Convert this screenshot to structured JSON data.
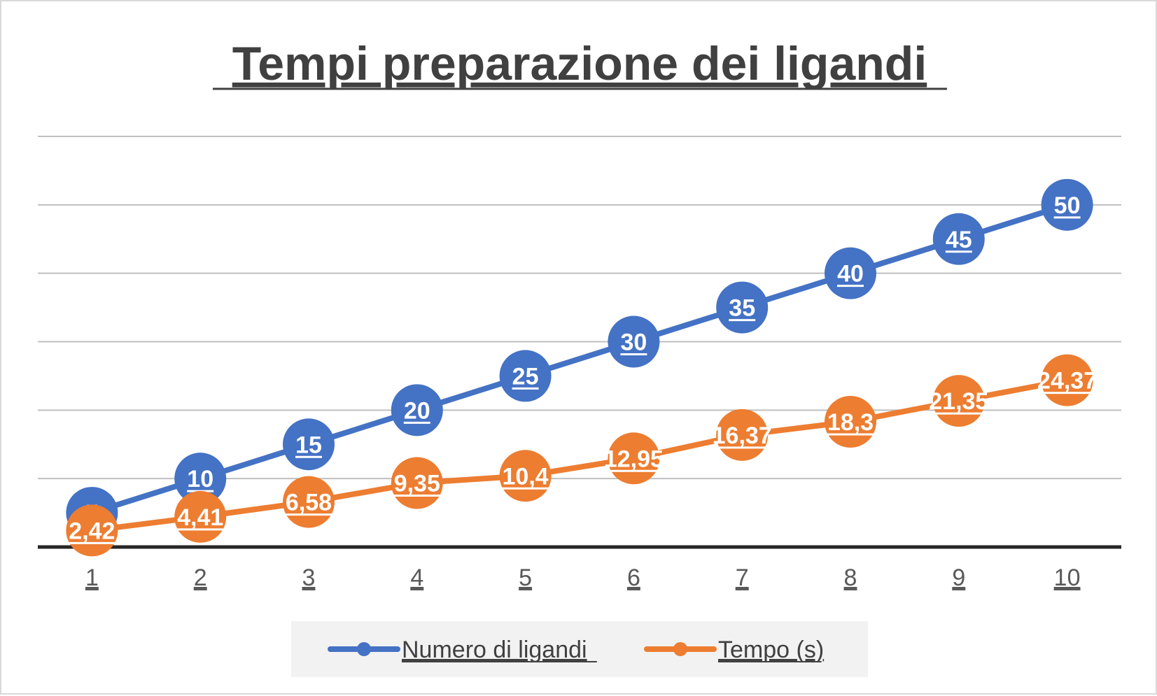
{
  "chart_data": {
    "type": "line",
    "title": "Tempi preparazione dei ligandi",
    "categories": [
      "1",
      "2",
      "3",
      "4",
      "5",
      "6",
      "7",
      "8",
      "9",
      "10"
    ],
    "ylim": [
      0,
      60
    ],
    "grid": true,
    "y_axis_labels_shown": false,
    "legend_position": "bottom",
    "series": [
      {
        "name": "Numero di ligandi",
        "color": "#4472c4",
        "values": [
          5,
          10,
          15,
          20,
          25,
          30,
          35,
          40,
          45,
          50
        ],
        "labels": [
          "5",
          "10",
          "15",
          "20",
          "25",
          "30",
          "35",
          "40",
          "45",
          "50"
        ]
      },
      {
        "name": "Tempo (s)",
        "color": "#ed7d31",
        "values": [
          2.42,
          4.41,
          6.58,
          9.35,
          10.4,
          12.95,
          16.37,
          18.3,
          21.35,
          24.37
        ],
        "labels": [
          "2,42",
          "4,41",
          "6,58",
          "9,35",
          "10,4",
          "12,95",
          "16,37",
          "18,3",
          "21,35",
          "24,37"
        ]
      }
    ]
  },
  "colors": {
    "title": "#404040",
    "grid": "#bfbfbf",
    "axis": "#262626",
    "tick_text": "#595959",
    "label_text": "#ffffff",
    "legend_background": "#f2f2f2",
    "frame_border": "#d9d9d9"
  }
}
